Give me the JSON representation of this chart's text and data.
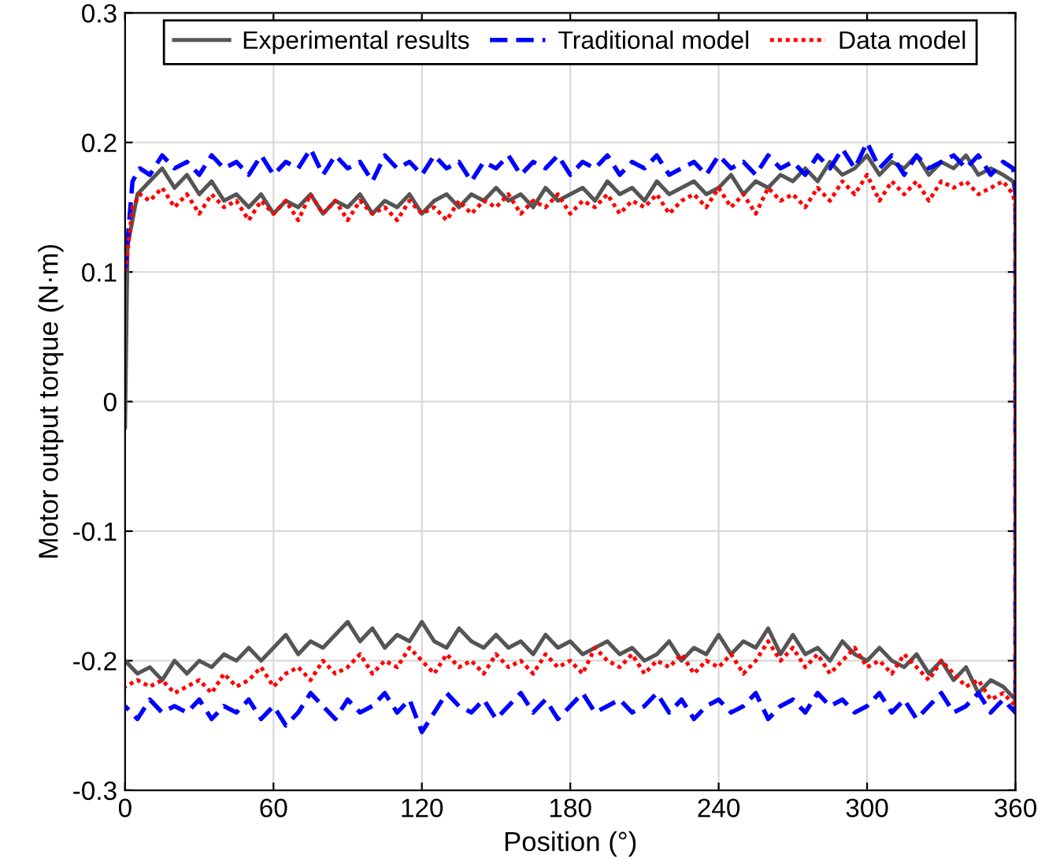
{
  "chart_data": {
    "type": "line",
    "xlabel": "Position (°)",
    "ylabel": "Motor output torque (N·m)",
    "xlim": [
      0,
      360
    ],
    "ylim": [
      -0.3,
      0.3
    ],
    "xticks": [
      0,
      60,
      120,
      180,
      240,
      300,
      360
    ],
    "yticks": [
      -0.3,
      -0.2,
      -0.1,
      0,
      0.1,
      0.2,
      0.3
    ],
    "grid": true,
    "legend": "top",
    "series": [
      {
        "name": "Experimental results",
        "color": "#555555",
        "line_style": "solid",
        "x": [
          0,
          1,
          5,
          10,
          15,
          20,
          25,
          30,
          35,
          40,
          45,
          50,
          55,
          60,
          65,
          70,
          75,
          80,
          85,
          90,
          95,
          100,
          105,
          110,
          115,
          120,
          125,
          130,
          135,
          140,
          145,
          150,
          155,
          160,
          165,
          170,
          175,
          180,
          185,
          190,
          195,
          200,
          205,
          210,
          215,
          220,
          225,
          230,
          235,
          240,
          245,
          250,
          255,
          260,
          265,
          270,
          275,
          280,
          285,
          290,
          295,
          300,
          305,
          310,
          315,
          320,
          325,
          330,
          335,
          340,
          345,
          350,
          355,
          359,
          360,
          360,
          355,
          350,
          345,
          340,
          335,
          330,
          325,
          320,
          315,
          310,
          305,
          300,
          295,
          290,
          285,
          280,
          275,
          270,
          265,
          260,
          255,
          250,
          245,
          240,
          235,
          230,
          225,
          220,
          215,
          210,
          205,
          200,
          195,
          190,
          185,
          180,
          175,
          170,
          165,
          160,
          155,
          150,
          145,
          140,
          135,
          130,
          125,
          120,
          115,
          110,
          105,
          100,
          95,
          90,
          85,
          80,
          75,
          70,
          65,
          60,
          55,
          50,
          45,
          40,
          35,
          30,
          25,
          20,
          15,
          10,
          5,
          0
        ],
        "values": [
          -0.02,
          0.12,
          0.16,
          0.17,
          0.18,
          0.165,
          0.175,
          0.16,
          0.17,
          0.155,
          0.16,
          0.15,
          0.16,
          0.145,
          0.155,
          0.15,
          0.16,
          0.145,
          0.155,
          0.15,
          0.16,
          0.145,
          0.155,
          0.15,
          0.16,
          0.145,
          0.155,
          0.16,
          0.15,
          0.16,
          0.155,
          0.165,
          0.155,
          0.16,
          0.15,
          0.165,
          0.155,
          0.16,
          0.165,
          0.155,
          0.17,
          0.16,
          0.165,
          0.155,
          0.17,
          0.16,
          0.165,
          0.17,
          0.16,
          0.165,
          0.175,
          0.16,
          0.17,
          0.165,
          0.175,
          0.17,
          0.18,
          0.17,
          0.185,
          0.175,
          0.18,
          0.19,
          0.175,
          0.185,
          0.18,
          0.19,
          0.175,
          0.185,
          0.18,
          0.19,
          0.175,
          0.18,
          0.175,
          0.17,
          0.16,
          -0.23,
          -0.22,
          -0.215,
          -0.225,
          -0.205,
          -0.215,
          -0.2,
          -0.21,
          -0.195,
          -0.205,
          -0.2,
          -0.19,
          -0.2,
          -0.195,
          -0.185,
          -0.2,
          -0.19,
          -0.195,
          -0.18,
          -0.195,
          -0.175,
          -0.19,
          -0.185,
          -0.195,
          -0.18,
          -0.195,
          -0.19,
          -0.2,
          -0.185,
          -0.195,
          -0.2,
          -0.19,
          -0.195,
          -0.185,
          -0.19,
          -0.195,
          -0.185,
          -0.19,
          -0.18,
          -0.195,
          -0.185,
          -0.19,
          -0.18,
          -0.19,
          -0.185,
          -0.175,
          -0.19,
          -0.185,
          -0.17,
          -0.185,
          -0.18,
          -0.19,
          -0.175,
          -0.185,
          -0.17,
          -0.18,
          -0.19,
          -0.185,
          -0.195,
          -0.18,
          -0.19,
          -0.2,
          -0.19,
          -0.2,
          -0.195,
          -0.205,
          -0.2,
          -0.21,
          -0.2,
          -0.215,
          -0.205,
          -0.21,
          -0.2
        ]
      },
      {
        "name": "Traditional model",
        "color": "#0000ff",
        "line_style": "dashed",
        "x": [
          0,
          3,
          6,
          10,
          15,
          20,
          25,
          30,
          35,
          40,
          45,
          50,
          55,
          60,
          65,
          70,
          75,
          80,
          85,
          90,
          95,
          100,
          105,
          110,
          115,
          120,
          125,
          130,
          135,
          140,
          145,
          150,
          155,
          160,
          165,
          170,
          175,
          180,
          185,
          190,
          195,
          200,
          205,
          210,
          215,
          220,
          225,
          230,
          235,
          240,
          245,
          250,
          255,
          260,
          265,
          270,
          275,
          280,
          285,
          290,
          295,
          300,
          305,
          310,
          315,
          320,
          325,
          330,
          335,
          340,
          345,
          350,
          355,
          359,
          360,
          360,
          355,
          350,
          345,
          340,
          335,
          330,
          325,
          320,
          315,
          310,
          305,
          300,
          295,
          290,
          285,
          280,
          275,
          270,
          265,
          260,
          255,
          250,
          245,
          240,
          235,
          230,
          225,
          220,
          215,
          210,
          205,
          200,
          195,
          190,
          185,
          180,
          175,
          170,
          165,
          160,
          155,
          150,
          145,
          140,
          135,
          130,
          125,
          120,
          115,
          110,
          105,
          100,
          95,
          90,
          85,
          80,
          75,
          70,
          65,
          60,
          55,
          50,
          45,
          40,
          35,
          30,
          25,
          20,
          15,
          10,
          5,
          0
        ],
        "values": [
          0.1,
          0.17,
          0.18,
          0.175,
          0.19,
          0.18,
          0.185,
          0.175,
          0.19,
          0.18,
          0.185,
          0.175,
          0.19,
          0.175,
          0.185,
          0.18,
          0.195,
          0.175,
          0.19,
          0.18,
          0.185,
          0.17,
          0.19,
          0.18,
          0.185,
          0.175,
          0.19,
          0.18,
          0.185,
          0.17,
          0.185,
          0.18,
          0.19,
          0.175,
          0.185,
          0.18,
          0.19,
          0.175,
          0.185,
          0.18,
          0.19,
          0.175,
          0.185,
          0.18,
          0.19,
          0.175,
          0.18,
          0.185,
          0.175,
          0.19,
          0.18,
          0.185,
          0.175,
          0.19,
          0.18,
          0.185,
          0.175,
          0.19,
          0.18,
          0.195,
          0.18,
          0.2,
          0.18,
          0.19,
          0.175,
          0.19,
          0.18,
          0.185,
          0.19,
          0.18,
          0.19,
          0.175,
          0.185,
          0.18,
          0.17,
          -0.24,
          -0.23,
          -0.24,
          -0.225,
          -0.235,
          -0.24,
          -0.225,
          -0.235,
          -0.245,
          -0.23,
          -0.24,
          -0.225,
          -0.235,
          -0.24,
          -0.23,
          -0.235,
          -0.225,
          -0.24,
          -0.23,
          -0.235,
          -0.245,
          -0.225,
          -0.235,
          -0.24,
          -0.23,
          -0.235,
          -0.245,
          -0.23,
          -0.24,
          -0.225,
          -0.235,
          -0.24,
          -0.23,
          -0.235,
          -0.24,
          -0.225,
          -0.235,
          -0.245,
          -0.23,
          -0.24,
          -0.225,
          -0.235,
          -0.245,
          -0.23,
          -0.24,
          -0.235,
          -0.225,
          -0.24,
          -0.255,
          -0.23,
          -0.24,
          -0.225,
          -0.235,
          -0.24,
          -0.23,
          -0.245,
          -0.235,
          -0.225,
          -0.24,
          -0.25,
          -0.235,
          -0.245,
          -0.23,
          -0.24,
          -0.235,
          -0.245,
          -0.23,
          -0.24,
          -0.235,
          -0.24,
          -0.23,
          -0.245,
          -0.235
        ]
      },
      {
        "name": "Data model",
        "color": "#ff0000",
        "line_style": "dotted",
        "x": [
          0,
          3,
          6,
          10,
          15,
          20,
          25,
          30,
          35,
          40,
          45,
          50,
          55,
          60,
          65,
          70,
          75,
          80,
          85,
          90,
          95,
          100,
          105,
          110,
          115,
          120,
          125,
          130,
          135,
          140,
          145,
          150,
          155,
          160,
          165,
          170,
          175,
          180,
          185,
          190,
          195,
          200,
          205,
          210,
          215,
          220,
          225,
          230,
          235,
          240,
          245,
          250,
          255,
          260,
          265,
          270,
          275,
          280,
          285,
          290,
          295,
          300,
          305,
          310,
          315,
          320,
          325,
          330,
          335,
          340,
          345,
          350,
          355,
          359,
          360,
          360,
          355,
          350,
          345,
          340,
          335,
          330,
          325,
          320,
          315,
          310,
          305,
          300,
          295,
          290,
          285,
          280,
          275,
          270,
          265,
          260,
          255,
          250,
          245,
          240,
          235,
          230,
          225,
          220,
          215,
          210,
          205,
          200,
          195,
          190,
          185,
          180,
          175,
          170,
          165,
          160,
          155,
          150,
          145,
          140,
          135,
          130,
          125,
          120,
          115,
          110,
          105,
          100,
          95,
          90,
          85,
          80,
          75,
          70,
          65,
          60,
          55,
          50,
          45,
          40,
          35,
          30,
          25,
          20,
          15,
          10,
          5,
          0
        ],
        "values": [
          0.1,
          0.15,
          0.16,
          0.155,
          0.165,
          0.15,
          0.16,
          0.145,
          0.16,
          0.15,
          0.155,
          0.14,
          0.155,
          0.145,
          0.155,
          0.14,
          0.16,
          0.145,
          0.155,
          0.14,
          0.155,
          0.145,
          0.15,
          0.14,
          0.155,
          0.145,
          0.15,
          0.14,
          0.155,
          0.145,
          0.155,
          0.15,
          0.16,
          0.145,
          0.155,
          0.15,
          0.16,
          0.145,
          0.155,
          0.15,
          0.16,
          0.145,
          0.155,
          0.15,
          0.16,
          0.145,
          0.155,
          0.16,
          0.15,
          0.165,
          0.15,
          0.16,
          0.145,
          0.165,
          0.155,
          0.16,
          0.15,
          0.165,
          0.155,
          0.17,
          0.16,
          0.175,
          0.155,
          0.17,
          0.16,
          0.17,
          0.155,
          0.17,
          0.165,
          0.17,
          0.16,
          0.165,
          0.17,
          0.16,
          0.15,
          -0.235,
          -0.225,
          -0.23,
          -0.215,
          -0.22,
          -0.21,
          -0.2,
          -0.215,
          -0.205,
          -0.195,
          -0.21,
          -0.2,
          -0.205,
          -0.19,
          -0.2,
          -0.21,
          -0.195,
          -0.205,
          -0.19,
          -0.2,
          -0.185,
          -0.2,
          -0.21,
          -0.195,
          -0.205,
          -0.2,
          -0.21,
          -0.195,
          -0.205,
          -0.2,
          -0.21,
          -0.195,
          -0.205,
          -0.2,
          -0.19,
          -0.21,
          -0.2,
          -0.205,
          -0.195,
          -0.21,
          -0.2,
          -0.205,
          -0.195,
          -0.21,
          -0.2,
          -0.205,
          -0.195,
          -0.21,
          -0.2,
          -0.19,
          -0.205,
          -0.2,
          -0.21,
          -0.195,
          -0.205,
          -0.21,
          -0.2,
          -0.215,
          -0.205,
          -0.21,
          -0.22,
          -0.205,
          -0.215,
          -0.22,
          -0.21,
          -0.225,
          -0.215,
          -0.22,
          -0.225,
          -0.215,
          -0.22,
          -0.215,
          -0.22
        ]
      }
    ]
  }
}
